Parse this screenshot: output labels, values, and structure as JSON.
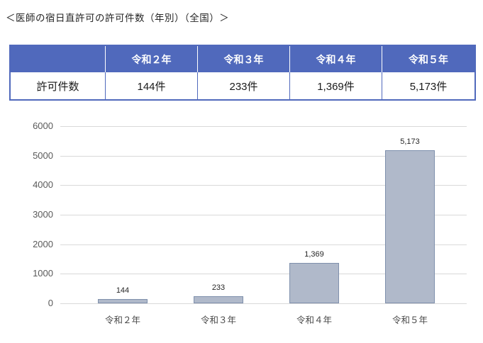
{
  "title": "＜医師の宿日直許可の許可件数（年別）（全国）＞",
  "table": {
    "corner": "",
    "headers": [
      "令和２年",
      "令和３年",
      "令和４年",
      "令和５年"
    ],
    "row_label": "許可件数",
    "values": [
      "144件",
      "233件",
      "1,369件",
      "5,173件"
    ]
  },
  "chart_data": {
    "type": "bar",
    "title": "",
    "categories": [
      "令和２年",
      "令和３年",
      "令和４年",
      "令和５年"
    ],
    "values": [
      144,
      233,
      1369,
      5173
    ],
    "value_labels": [
      "144",
      "233",
      "1,369",
      "5,173"
    ],
    "xlabel": "",
    "ylabel": "",
    "ylim": [
      0,
      6000
    ],
    "ytick_step": 1000,
    "grid": true,
    "legend": false
  },
  "colors": {
    "table_header_bg": "#5069BC",
    "bar_fill": "#B0B9CA",
    "bar_border": "#7F90AC",
    "gridline": "#D9D9D9",
    "axis_label": "#595959",
    "text": "#262626"
  }
}
